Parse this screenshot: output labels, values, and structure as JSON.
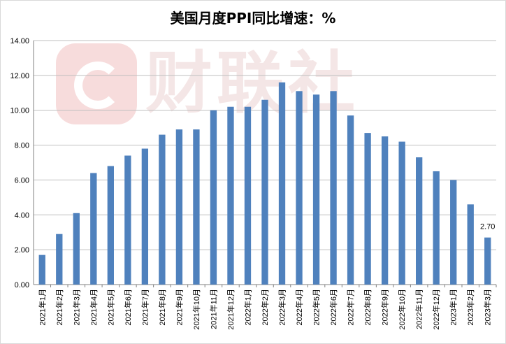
{
  "chart_data": {
    "type": "bar",
    "title": "美国月度PPI同比增速：%",
    "watermark": "财联社",
    "categories": [
      "2021年1月",
      "2021年2月",
      "2021年3月",
      "2021年4月",
      "2021年5月",
      "2021年6月",
      "2021年7月",
      "2021年8月",
      "2021年9月",
      "2021年10月",
      "2021年11月",
      "2021年12月",
      "2022年1月",
      "2022年2月",
      "2022年3月",
      "2022年4月",
      "2022年5月",
      "2022年6月",
      "2022年7月",
      "2022年8月",
      "2022年9月",
      "2022年10月",
      "2022年11月",
      "2022年12月",
      "2023年1月",
      "2023年2月",
      "2023年3月"
    ],
    "values": [
      1.7,
      2.9,
      4.1,
      6.4,
      6.8,
      7.4,
      7.8,
      8.6,
      8.9,
      8.9,
      10.0,
      10.2,
      10.2,
      10.6,
      11.6,
      11.1,
      10.9,
      11.1,
      9.7,
      8.7,
      8.5,
      8.2,
      7.3,
      6.5,
      6.0,
      4.6,
      2.7
    ],
    "data_labels": [
      {
        "index": 26,
        "text": "2.70"
      }
    ],
    "ylim": [
      0,
      14
    ],
    "yticks": [
      "0.00",
      "2.00",
      "4.00",
      "6.00",
      "8.00",
      "10.00",
      "12.00",
      "14.00"
    ],
    "grid": true,
    "bar_color": "#4f81bd",
    "grid_color": "#bfbfbf"
  }
}
